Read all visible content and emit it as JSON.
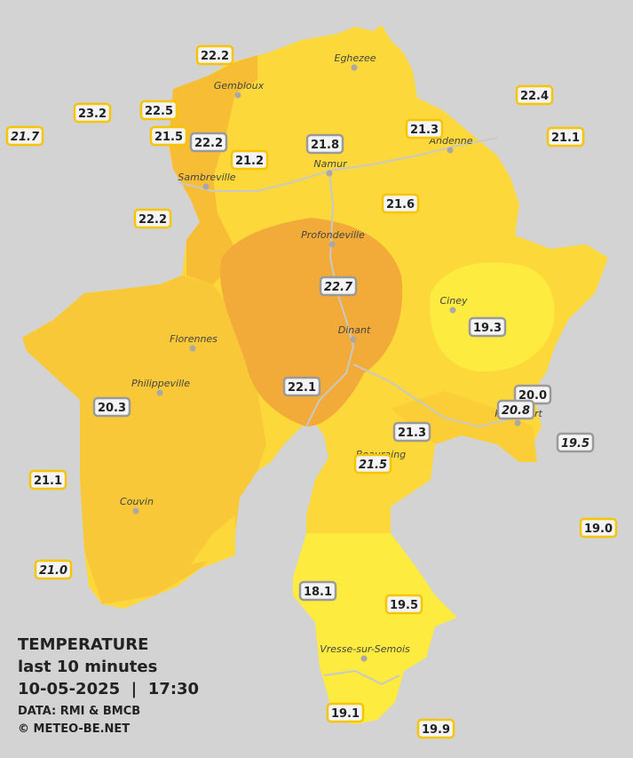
{
  "map": {
    "cities": [
      "Eghezee",
      "Gembloux",
      "Andenne",
      "Namur",
      "Sambreville",
      "Profondeville",
      "Ciney",
      "Dinant",
      "Florennes",
      "Philippeville",
      "Rochefort",
      "Beauraing",
      "Couvin",
      "Vresse-sur-Semois"
    ],
    "stations": [
      "22.2",
      "23.2",
      "22.5",
      "21.7",
      "21.5",
      "22.2",
      "21.2",
      "21.8",
      "21.3",
      "22.4",
      "21.1",
      "22.2",
      "21.6",
      "22.7",
      "19.3",
      "22.1",
      "20.3",
      "20.0",
      "20.8",
      "19.5",
      "21.3",
      "21.5",
      "21.1",
      "19.0",
      "21.0",
      "18.1",
      "19.5",
      "19.1",
      "19.9"
    ]
  },
  "legend": {
    "title": "TEMPERATURE",
    "subtitle": "last 10 minutes",
    "datetime": "10-05-2025  |  17:30",
    "source": "DATA: RMI & BMCB",
    "credit": "© METEO-BE.NET"
  }
}
